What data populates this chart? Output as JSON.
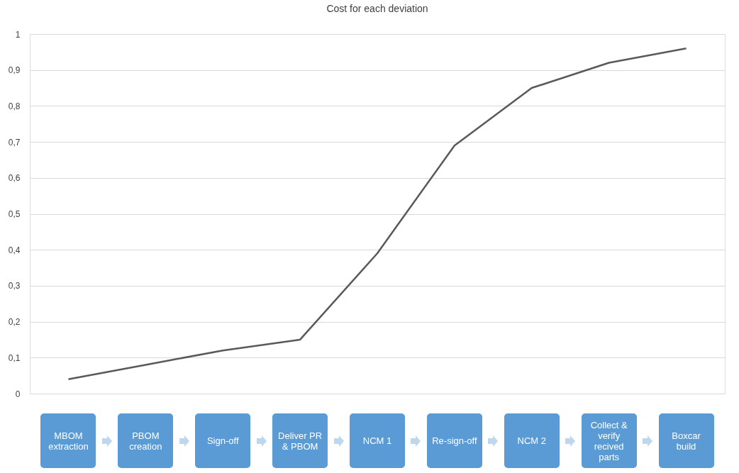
{
  "chart_data": {
    "type": "line",
    "title": "Cost for each deviation",
    "categories": [
      "MBOM extraction",
      "PBOM creation",
      "Sign-off",
      "Deliver PR & PBOM",
      "NCM 1",
      "Re-sign-off",
      "NCM 2",
      "Collect & verify recived parts",
      "Boxcar build"
    ],
    "series": [
      {
        "color": "#595959",
        "values": [
          0.04,
          0.08,
          0.12,
          0.15,
          0.39,
          0.69,
          0.85,
          0.92,
          0.96
        ]
      }
    ],
    "ylim": [
      0,
      1
    ],
    "yticks": [
      {
        "value": 0,
        "label": "0"
      },
      {
        "value": 0.1,
        "label": "0,1"
      },
      {
        "value": 0.2,
        "label": "0,2"
      },
      {
        "value": 0.3,
        "label": "0,3"
      },
      {
        "value": 0.4,
        "label": "0,4"
      },
      {
        "value": 0.5,
        "label": "0,5"
      },
      {
        "value": 0.6,
        "label": "0,6"
      },
      {
        "value": 0.7,
        "label": "0,7"
      },
      {
        "value": 0.8,
        "label": "0,8"
      },
      {
        "value": 0.9,
        "label": "0,9"
      },
      {
        "value": 1,
        "label": "1"
      }
    ],
    "grid": "y",
    "legend": false,
    "marker": "none",
    "line_style": "solid"
  }
}
